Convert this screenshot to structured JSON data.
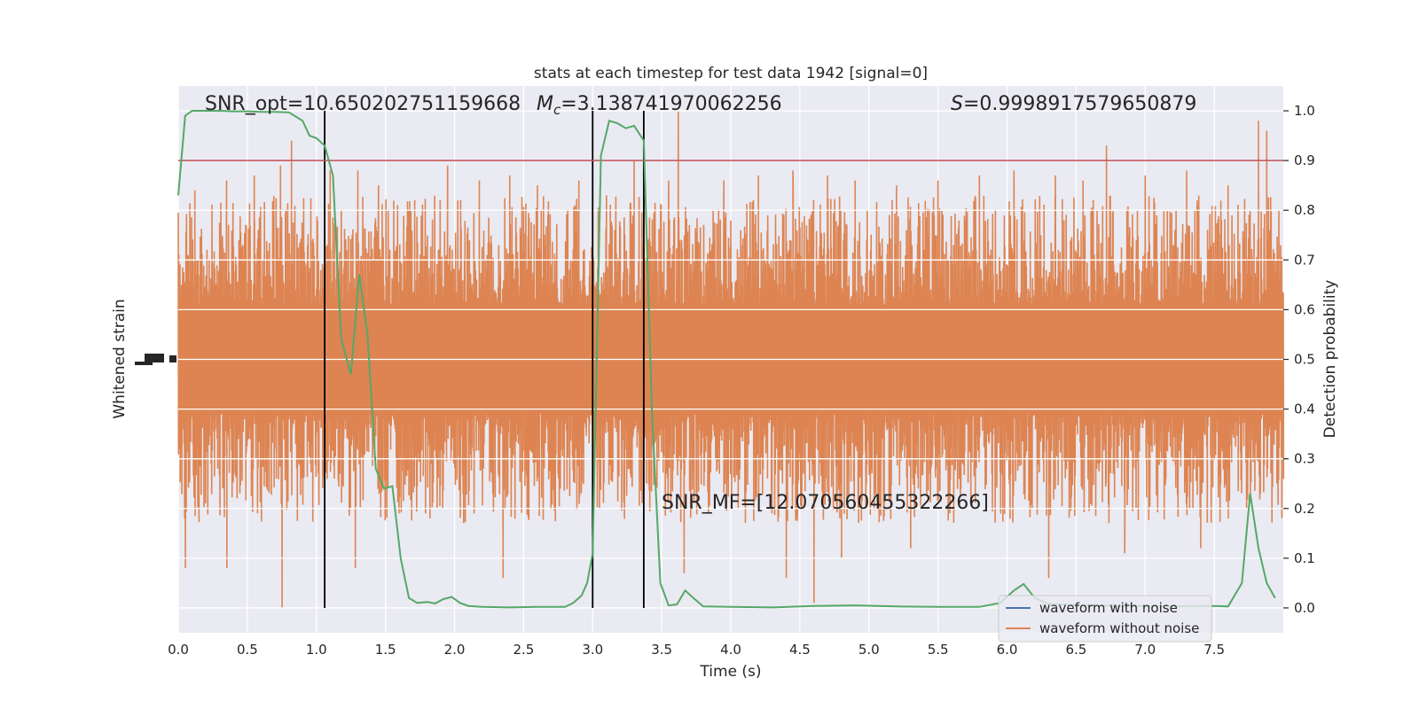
{
  "chart_data": {
    "type": "line",
    "title": "stats at each timestep for test data 1942 [signal=0]",
    "xlabel": "Time (s)",
    "ylabel_left": "Whitened strain",
    "ylabel_right": "Detection probability",
    "xlim": [
      0.0,
      8.0
    ],
    "ylim_right": [
      -0.05,
      1.05
    ],
    "xticks": [
      0.0,
      0.5,
      1.0,
      1.5,
      2.0,
      2.5,
      3.0,
      3.5,
      4.0,
      4.5,
      5.0,
      5.5,
      6.0,
      6.5,
      7.0,
      7.5
    ],
    "xtick_labels": [
      "0.0",
      "0.5",
      "1.0",
      "1.5",
      "2.0",
      "2.5",
      "3.0",
      "3.5",
      "4.0",
      "4.5",
      "5.0",
      "5.5",
      "6.0",
      "6.5",
      "7.0",
      "7.5"
    ],
    "yticks_right": [
      0.0,
      0.1,
      0.2,
      0.3,
      0.4,
      0.5,
      0.6,
      0.7,
      0.8,
      0.9,
      1.0
    ],
    "ytick_labels_right": [
      "0.0",
      "0.1",
      "0.2",
      "0.3",
      "0.4",
      "0.5",
      "0.6",
      "0.7",
      "0.8",
      "0.9",
      "1.0"
    ],
    "grid": true,
    "threshold": {
      "value": 0.9,
      "color": "#c44e52"
    },
    "vertical_lines": [
      1.06,
      3.0,
      3.37
    ],
    "annotations": {
      "snr_opt": "SNR_opt=10.650202751159668",
      "mc_symbol": "M",
      "mc_sub": "c",
      "mc_value": "=3.138741970062256",
      "s_symbol": "S",
      "s_value": "=0.9998917579650879",
      "snr_mf": "SNR_MF=[12.070560455322266]"
    },
    "legend": {
      "position": "lower-right",
      "entries": [
        {
          "label": "waveform with noise",
          "color": "#4c72b0"
        },
        {
          "label": "waveform without noise",
          "color": "#dd8452"
        }
      ]
    },
    "series": [
      {
        "color": "#55a868",
        "x": [
          0.0,
          0.05,
          0.1,
          0.2,
          0.3,
          0.4,
          0.5,
          0.6,
          0.7,
          0.8,
          0.9,
          0.95,
          1.0,
          1.06,
          1.12,
          1.18,
          1.25,
          1.31,
          1.37,
          1.43,
          1.49,
          1.55,
          1.61,
          1.67,
          1.73,
          1.8,
          1.86,
          1.92,
          1.98,
          2.04,
          2.1,
          2.2,
          2.4,
          2.6,
          2.8,
          2.86,
          2.92,
          2.96,
          3.0,
          3.06,
          3.12,
          3.18,
          3.24,
          3.3,
          3.37,
          3.43,
          3.49,
          3.55,
          3.61,
          3.67,
          3.73,
          3.8,
          4.0,
          4.3,
          4.6,
          4.9,
          5.2,
          5.5,
          5.8,
          5.95,
          6.05,
          6.12,
          6.2,
          6.3,
          6.6,
          6.9,
          7.2,
          7.5,
          7.6,
          7.7,
          7.76,
          7.82,
          7.88,
          7.94
        ],
        "y": [
          0.83,
          0.99,
          1.0,
          1.0,
          1.0,
          0.999,
          0.999,
          0.998,
          0.998,
          0.997,
          0.98,
          0.95,
          0.945,
          0.93,
          0.87,
          0.54,
          0.47,
          0.67,
          0.55,
          0.28,
          0.24,
          0.245,
          0.1,
          0.02,
          0.01,
          0.012,
          0.009,
          0.018,
          0.022,
          0.01,
          0.004,
          0.002,
          0.001,
          0.002,
          0.002,
          0.01,
          0.025,
          0.05,
          0.11,
          0.91,
          0.98,
          0.975,
          0.965,
          0.97,
          0.94,
          0.39,
          0.05,
          0.005,
          0.007,
          0.035,
          0.02,
          0.003,
          0.002,
          0.001,
          0.004,
          0.005,
          0.003,
          0.002,
          0.002,
          0.01,
          0.035,
          0.048,
          0.02,
          0.008,
          0.005,
          0.004,
          0.003,
          0.004,
          0.003,
          0.05,
          0.23,
          0.12,
          0.05,
          0.02
        ]
      }
    ],
    "strain_noise": {
      "color": "#dd8452",
      "description_only": false,
      "band_center": 0.5,
      "band_half_width": 0.11,
      "spike_peaks": [
        [
          0.12,
          0.84
        ],
        [
          0.35,
          0.86
        ],
        [
          0.55,
          0.87
        ],
        [
          0.74,
          0.89
        ],
        [
          0.82,
          0.94
        ],
        [
          1.1,
          0.88
        ],
        [
          1.3,
          0.88
        ],
        [
          1.45,
          0.85
        ],
        [
          1.95,
          0.89
        ],
        [
          2.18,
          0.86
        ],
        [
          2.4,
          0.87
        ],
        [
          2.6,
          0.85
        ],
        [
          2.9,
          0.86
        ],
        [
          3.1,
          0.83
        ],
        [
          3.3,
          0.9
        ],
        [
          3.55,
          0.86
        ],
        [
          3.62,
          1.0
        ],
        [
          3.95,
          0.86
        ],
        [
          4.2,
          0.87
        ],
        [
          4.45,
          0.88
        ],
        [
          4.7,
          0.87
        ],
        [
          4.9,
          0.86
        ],
        [
          5.2,
          0.85
        ],
        [
          5.5,
          0.86
        ],
        [
          5.8,
          0.87
        ],
        [
          6.05,
          0.88
        ],
        [
          6.35,
          0.87
        ],
        [
          6.55,
          0.86
        ],
        [
          6.72,
          0.93
        ],
        [
          7.0,
          0.87
        ],
        [
          7.3,
          0.88
        ],
        [
          7.6,
          0.85
        ],
        [
          7.82,
          0.98
        ],
        [
          7.88,
          0.96
        ]
      ],
      "spike_troughs": [
        [
          0.05,
          0.08
        ],
        [
          0.35,
          0.08
        ],
        [
          0.75,
          0.0
        ],
        [
          1.28,
          0.08
        ],
        [
          2.35,
          0.06
        ],
        [
          3.66,
          0.07
        ],
        [
          4.4,
          0.06
        ],
        [
          4.6,
          0.01
        ],
        [
          4.8,
          0.1
        ],
        [
          5.3,
          0.12
        ],
        [
          6.3,
          0.06
        ],
        [
          6.85,
          0.11
        ],
        [
          7.4,
          0.12
        ],
        [
          7.6,
          0.18
        ]
      ]
    }
  }
}
